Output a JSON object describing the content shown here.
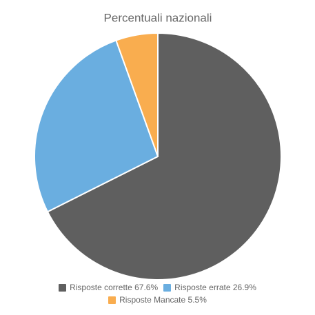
{
  "chart_data": {
    "type": "pie",
    "title": "Percentuali nazionali",
    "categories": [
      "Risposte corrette",
      "Risposte errate",
      "Risposte Mancate"
    ],
    "values": [
      67.6,
      26.9,
      5.5
    ],
    "value_labels": [
      "67.6%",
      "26.9%",
      "5.5%"
    ],
    "colors": [
      "#5f5f5f",
      "#6aaee0",
      "#f9ad4f"
    ],
    "legend": "bottom"
  }
}
